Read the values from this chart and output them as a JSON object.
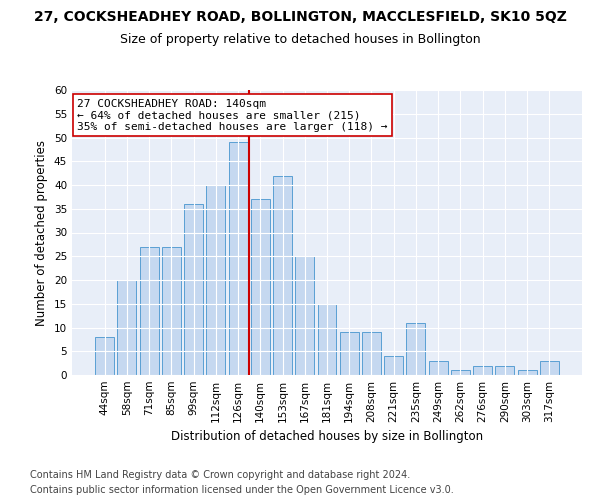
{
  "title": "27, COCKSHEADHEY ROAD, BOLLINGTON, MACCLESFIELD, SK10 5QZ",
  "subtitle": "Size of property relative to detached houses in Bollington",
  "xlabel": "Distribution of detached houses by size in Bollington",
  "ylabel": "Number of detached properties",
  "categories": [
    "44sqm",
    "58sqm",
    "71sqm",
    "85sqm",
    "99sqm",
    "112sqm",
    "126sqm",
    "140sqm",
    "153sqm",
    "167sqm",
    "181sqm",
    "194sqm",
    "208sqm",
    "221sqm",
    "235sqm",
    "249sqm",
    "262sqm",
    "276sqm",
    "290sqm",
    "303sqm",
    "317sqm"
  ],
  "values": [
    8,
    20,
    27,
    27,
    36,
    40,
    49,
    37,
    42,
    25,
    15,
    9,
    9,
    4,
    11,
    3,
    1,
    2,
    2,
    1,
    3
  ],
  "bar_color": "#c5d8f0",
  "bar_edge_color": "#5a9fd4",
  "highlight_index": 7,
  "highlight_line_color": "#cc0000",
  "ylim": [
    0,
    60
  ],
  "yticks": [
    0,
    5,
    10,
    15,
    20,
    25,
    30,
    35,
    40,
    45,
    50,
    55,
    60
  ],
  "annotation_line1": "27 COCKSHEADHEY ROAD: 140sqm",
  "annotation_line2": "← 64% of detached houses are smaller (215)",
  "annotation_line3": "35% of semi-detached houses are larger (118) →",
  "annotation_box_color": "#ffffff",
  "annotation_box_edge_color": "#cc0000",
  "footer_line1": "Contains HM Land Registry data © Crown copyright and database right 2024.",
  "footer_line2": "Contains public sector information licensed under the Open Government Licence v3.0.",
  "background_color": "#e8eef8",
  "grid_color": "#ffffff",
  "title_fontsize": 10,
  "subtitle_fontsize": 9,
  "axis_label_fontsize": 8.5,
  "tick_fontsize": 7.5,
  "annotation_fontsize": 8,
  "footer_fontsize": 7
}
